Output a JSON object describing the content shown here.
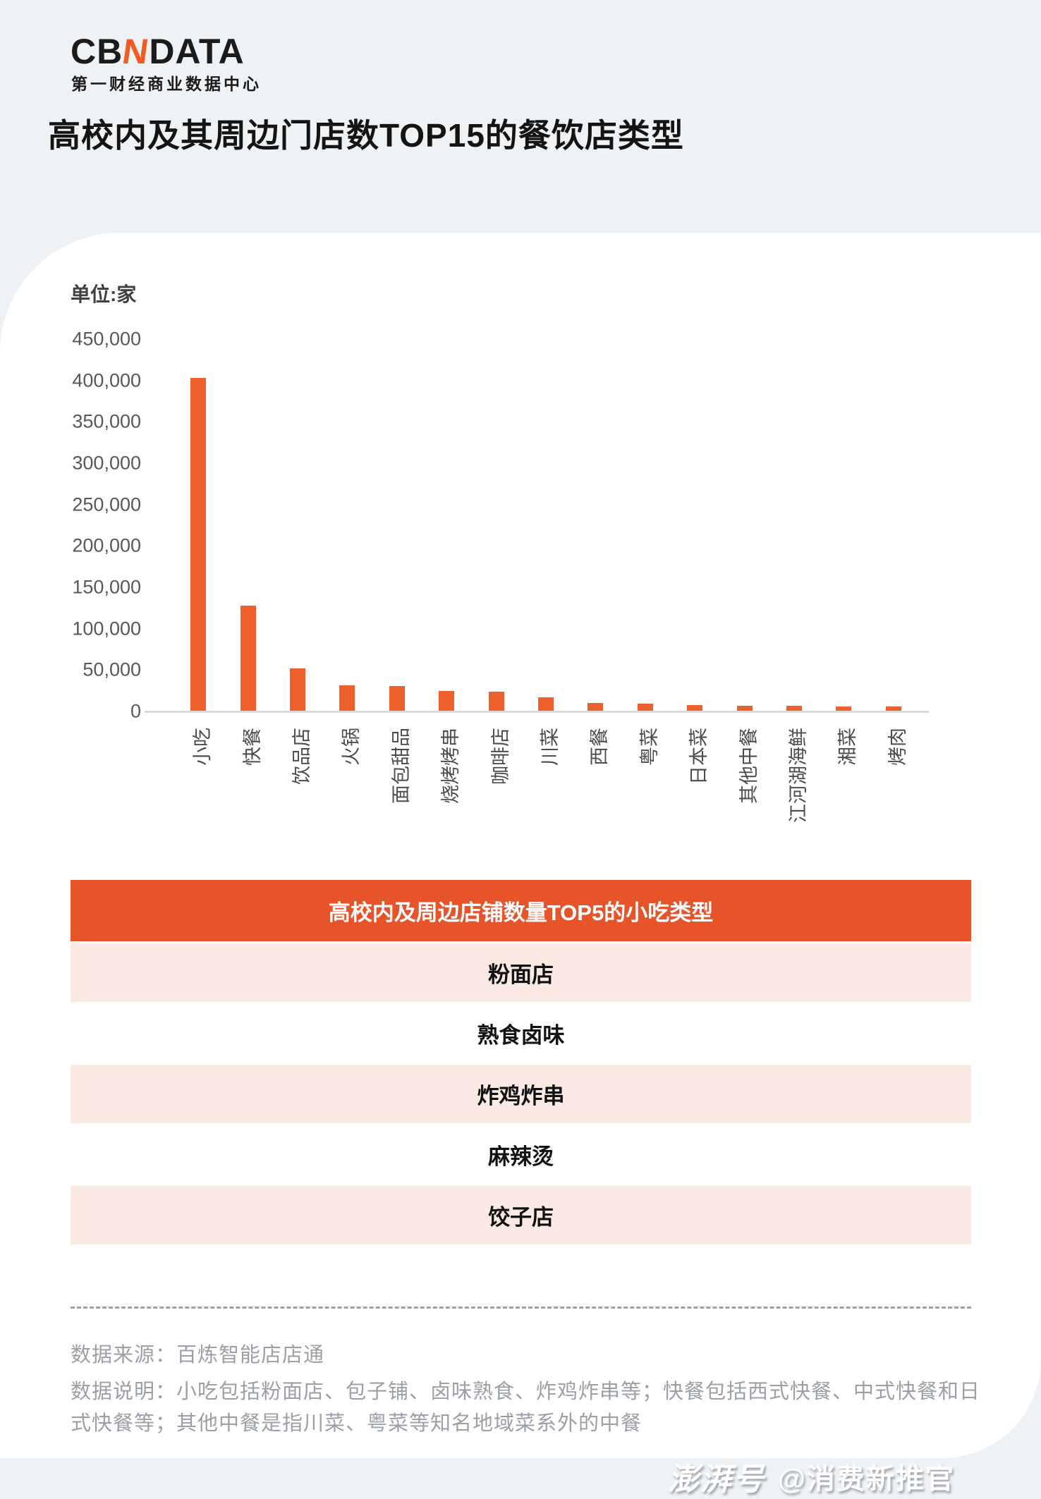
{
  "brand": {
    "logo_cb": "CB",
    "logo_n": "N",
    "logo_data": "DATA",
    "tagline": "第一财经商业数据中心"
  },
  "title": "高校内及其周边门店数TOP15的餐饮店类型",
  "watermark": {
    "line1": "CBNDATA",
    "line2": "第一财经商业数据中心"
  },
  "chart_data": {
    "type": "bar",
    "title": "高校内及其周边门店数TOP15的餐饮店类型",
    "unit_label": "单位:家",
    "categories": [
      "小吃",
      "快餐",
      "饮品店",
      "火锅",
      "面包甜品",
      "烧烤烤串",
      "咖啡店",
      "川菜",
      "西餐",
      "粤菜",
      "日本菜",
      "其他中餐",
      "江河湖海鲜",
      "湘菜",
      "烤肉"
    ],
    "values": [
      403000,
      128000,
      52000,
      32000,
      31000,
      25000,
      24000,
      17000,
      10000,
      9500,
      8000,
      7000,
      6500,
      6300,
      6000
    ],
    "xlabel": "",
    "ylabel": "单位:家",
    "ylim": [
      0,
      450000
    ],
    "ytick_step": 50000,
    "grid": false,
    "legend": false,
    "bar_color": "#ED5F2B"
  },
  "table": {
    "header": "高校内及周边店铺数量TOP5的小吃类型",
    "rows": [
      "粉面店",
      "熟食卤味",
      "炸鸡炸串",
      "麻辣烫",
      "饺子店"
    ],
    "header_bg": "#E8542A",
    "row_alt_bg": "#FBE9E4"
  },
  "footer": {
    "source": "数据来源：百炼智能店店通",
    "note": "数据说明：小吃包括粉面店、包子铺、卤味熟食、炸鸡炸串等；快餐包括西式快餐、中式快餐和日式快餐等；其他中餐是指川菜、粤菜等知名地域菜系外的中餐"
  },
  "badge": {
    "brand": "澎湃号",
    "handle": "@消费新推官"
  },
  "colors": {
    "page_bg": "#EFF2F4",
    "card_bg": "#FFFFFF",
    "accent_orange": "#ED5F2B",
    "axis_text": "#55585C",
    "footer_text": "#9BA0A6"
  }
}
